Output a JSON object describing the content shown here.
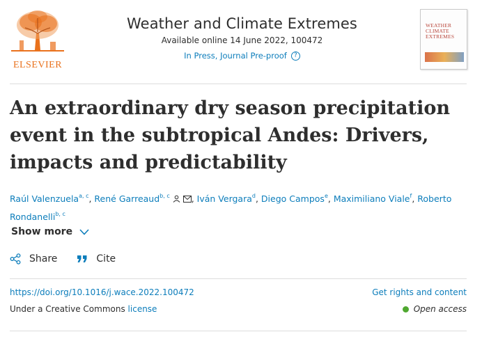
{
  "publisher": {
    "name": "ELSEVIER"
  },
  "journal": {
    "title": "Weather and Climate Extremes",
    "availability": "Available online 14 June 2022, 100472",
    "status": "In Press, Journal Pre-proof",
    "help_glyph": "?",
    "cover_text": [
      "WEATHER",
      "CLIMATE",
      "EXTREMES"
    ]
  },
  "article": {
    "title": "An extraordinary dry season precipitation event in the subtropical Andes: Drivers, impacts and predictability"
  },
  "authors": [
    {
      "name": "Raúl Valenzuela",
      "aff": "a, c"
    },
    {
      "name": "René Garreaud",
      "aff": "b, c"
    },
    {
      "name": "Iván Vergara",
      "aff": "d"
    },
    {
      "name": "Diego Campos",
      "aff": "e"
    },
    {
      "name": "Maximiliano Viale",
      "aff": "f"
    },
    {
      "name": "Roberto Rondanelli",
      "aff": "b, c"
    }
  ],
  "show_more": {
    "label": "Show more"
  },
  "actions": {
    "share": "Share",
    "cite": "Cite"
  },
  "doi": {
    "text": "https://doi.org/10.1016/j.wace.2022.100472"
  },
  "license": {
    "prefix": "Under a Creative Commons ",
    "link": "license"
  },
  "rights": {
    "label": "Get rights and content"
  },
  "access": {
    "label": "Open access",
    "color": "#4fa830"
  },
  "colors": {
    "link": "#0c7dbb",
    "brand": "#e9711c",
    "text": "#2e2e2e"
  },
  "icons": {
    "corresponding": "person-icon",
    "email": "envelope-icon",
    "chevron": "chevron-down-icon",
    "share": "share-icon",
    "cite": "quote-icon"
  }
}
